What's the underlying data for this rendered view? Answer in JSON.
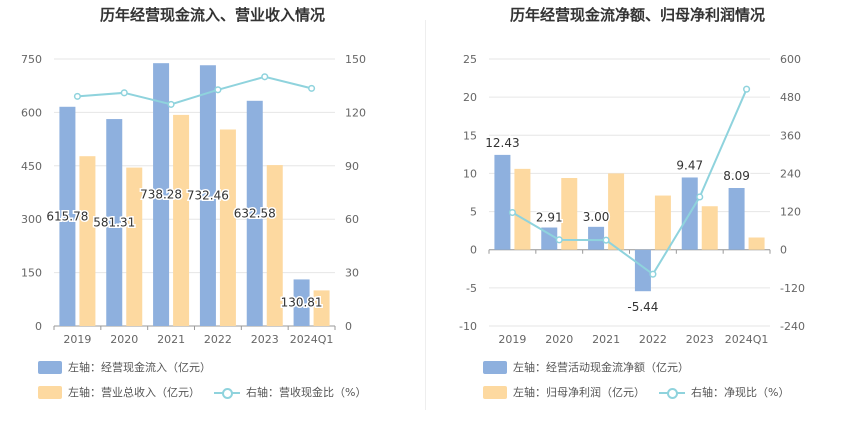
{
  "chart_data": [
    {
      "type": "bar",
      "title": "历年经营现金流入、营业收入情况",
      "categories": [
        "2019",
        "2020",
        "2021",
        "2022",
        "2023",
        "2024Q1"
      ],
      "left_axis": {
        "ticks": [
          "0",
          "150",
          "300",
          "450",
          "600",
          "750"
        ],
        "ylim": [
          0,
          750
        ]
      },
      "right_axis": {
        "ticks": [
          "0",
          "30",
          "60",
          "90",
          "120",
          "150"
        ],
        "ylim": [
          0,
          150
        ]
      },
      "series": [
        {
          "name": "左轴：经营现金流入（亿元）",
          "type": "bar",
          "axis": "left",
          "color": "#8eb0de",
          "values": [
            615.78,
            581.31,
            738.28,
            732.46,
            632.58,
            130.81
          ],
          "labels": [
            "615.78",
            "581.31",
            "738.28",
            "732.46",
            "632.58",
            "130.81"
          ]
        },
        {
          "name": "左轴：营业总收入（亿元）",
          "type": "bar",
          "axis": "left",
          "color": "#fdd9a0",
          "values": [
            477,
            445,
            593,
            552,
            452,
            100
          ]
        },
        {
          "name": "右轴：营收现金比（%）",
          "type": "line",
          "axis": "right",
          "color": "#8fd3dd",
          "values": [
            129,
            131,
            124.5,
            132.7,
            140,
            133.5
          ]
        }
      ]
    },
    {
      "type": "bar",
      "title": "历年经营现金流净额、归母净利润情况",
      "categories": [
        "2019",
        "2020",
        "2021",
        "2022",
        "2023",
        "2024Q1"
      ],
      "left_axis": {
        "ticks": [
          "-10",
          "-5",
          "0",
          "5",
          "10",
          "15",
          "20",
          "25"
        ],
        "ylim": [
          -10,
          25
        ]
      },
      "right_axis": {
        "ticks": [
          "-240",
          "-120",
          "0",
          "120",
          "240",
          "360",
          "480",
          "600"
        ],
        "ylim": [
          -240,
          600
        ]
      },
      "series": [
        {
          "name": "左轴：经营活动现金流净额（亿元）",
          "type": "bar",
          "axis": "left",
          "color": "#8eb0de",
          "values": [
            12.43,
            2.91,
            3.0,
            -5.44,
            9.47,
            8.09
          ],
          "labels": [
            "12.43",
            "2.91",
            "3.00",
            "-5.44",
            "9.47",
            "8.09"
          ]
        },
        {
          "name": "左轴：归母净利润（亿元）",
          "type": "bar",
          "axis": "left",
          "color": "#fdd9a0",
          "values": [
            10.6,
            9.4,
            10.0,
            7.1,
            5.7,
            1.6
          ]
        },
        {
          "name": "右轴：净现比（%）",
          "type": "line",
          "axis": "right",
          "color": "#8fd3dd",
          "values": [
            117,
            31,
            30,
            -77,
            166,
            505
          ]
        }
      ]
    }
  ]
}
